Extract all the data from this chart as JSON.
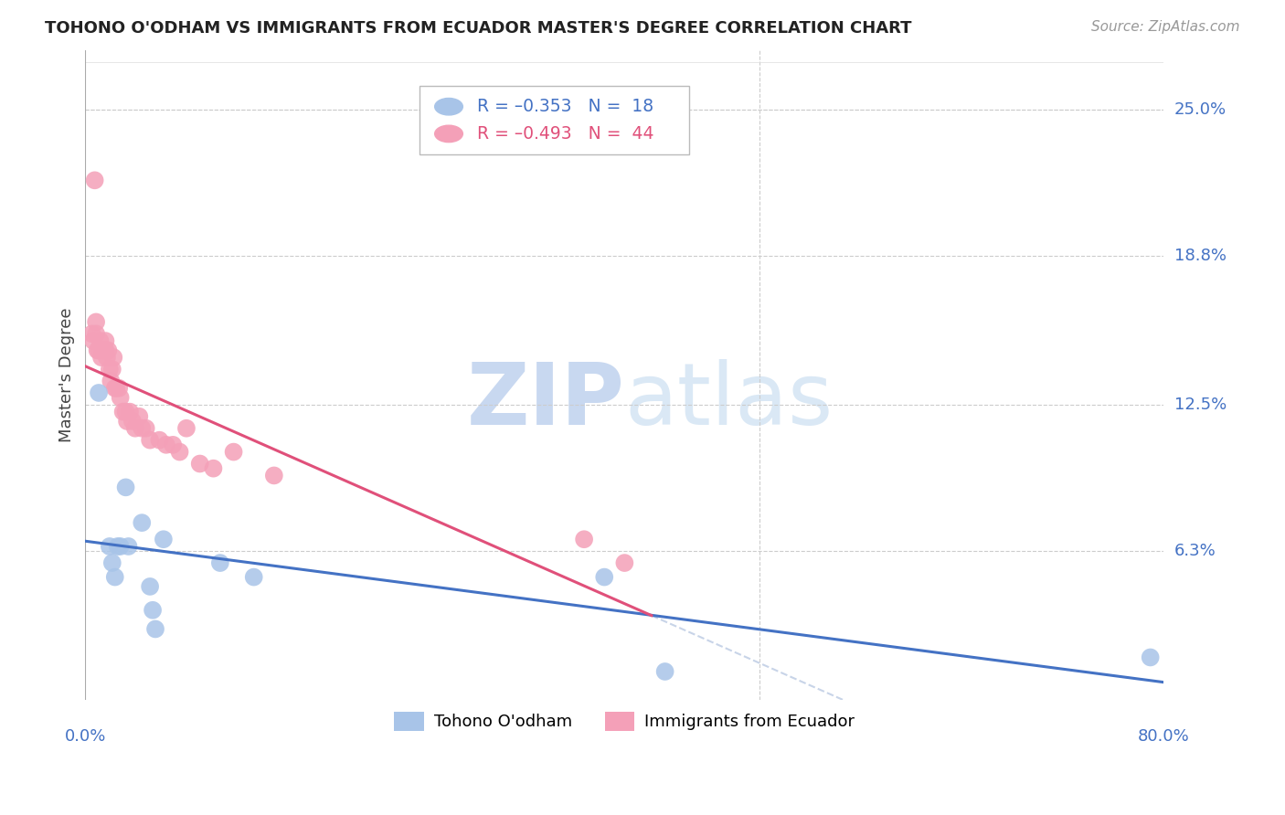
{
  "title": "TOHONO O'ODHAM VS IMMIGRANTS FROM ECUADOR MASTER'S DEGREE CORRELATION CHART",
  "source": "Source: ZipAtlas.com",
  "ylabel": "Master's Degree",
  "ytick_labels": [
    "25.0%",
    "18.8%",
    "12.5%",
    "6.3%"
  ],
  "ytick_values": [
    0.25,
    0.188,
    0.125,
    0.063
  ],
  "xlim": [
    0.0,
    0.8
  ],
  "ylim": [
    0.0,
    0.275
  ],
  "color_blue": "#a8c4e8",
  "color_pink": "#f4a0b8",
  "color_blue_line": "#4472c4",
  "color_pink_line": "#e0507a",
  "color_dashed_ext": "#c8d4e8",
  "watermark_zip": "ZIP",
  "watermark_atlas": "atlas",
  "watermark_color_zip": "#c8d8f0",
  "watermark_color_atlas": "#d8e8f8",
  "tohono_x": [
    0.01,
    0.018,
    0.02,
    0.022,
    0.024,
    0.026,
    0.03,
    0.032,
    0.042,
    0.048,
    0.05,
    0.052,
    0.058,
    0.1,
    0.125,
    0.385,
    0.43,
    0.79
  ],
  "tohono_y": [
    0.13,
    0.065,
    0.058,
    0.052,
    0.065,
    0.065,
    0.09,
    0.065,
    0.075,
    0.048,
    0.038,
    0.03,
    0.068,
    0.058,
    0.052,
    0.052,
    0.012,
    0.018
  ],
  "ecuador_x": [
    0.005,
    0.006,
    0.007,
    0.008,
    0.008,
    0.009,
    0.01,
    0.011,
    0.012,
    0.013,
    0.014,
    0.015,
    0.015,
    0.016,
    0.017,
    0.018,
    0.019,
    0.02,
    0.021,
    0.022,
    0.023,
    0.025,
    0.026,
    0.028,
    0.03,
    0.031,
    0.033,
    0.035,
    0.037,
    0.04,
    0.042,
    0.045,
    0.048,
    0.055,
    0.06,
    0.065,
    0.07,
    0.075,
    0.085,
    0.095,
    0.11,
    0.14,
    0.37,
    0.4
  ],
  "ecuador_y": [
    0.155,
    0.152,
    0.22,
    0.16,
    0.155,
    0.148,
    0.148,
    0.152,
    0.145,
    0.148,
    0.148,
    0.152,
    0.148,
    0.145,
    0.148,
    0.14,
    0.135,
    0.14,
    0.145,
    0.132,
    0.132,
    0.132,
    0.128,
    0.122,
    0.122,
    0.118,
    0.122,
    0.118,
    0.115,
    0.12,
    0.115,
    0.115,
    0.11,
    0.11,
    0.108,
    0.108,
    0.105,
    0.115,
    0.1,
    0.098,
    0.105,
    0.095,
    0.068,
    0.058
  ]
}
